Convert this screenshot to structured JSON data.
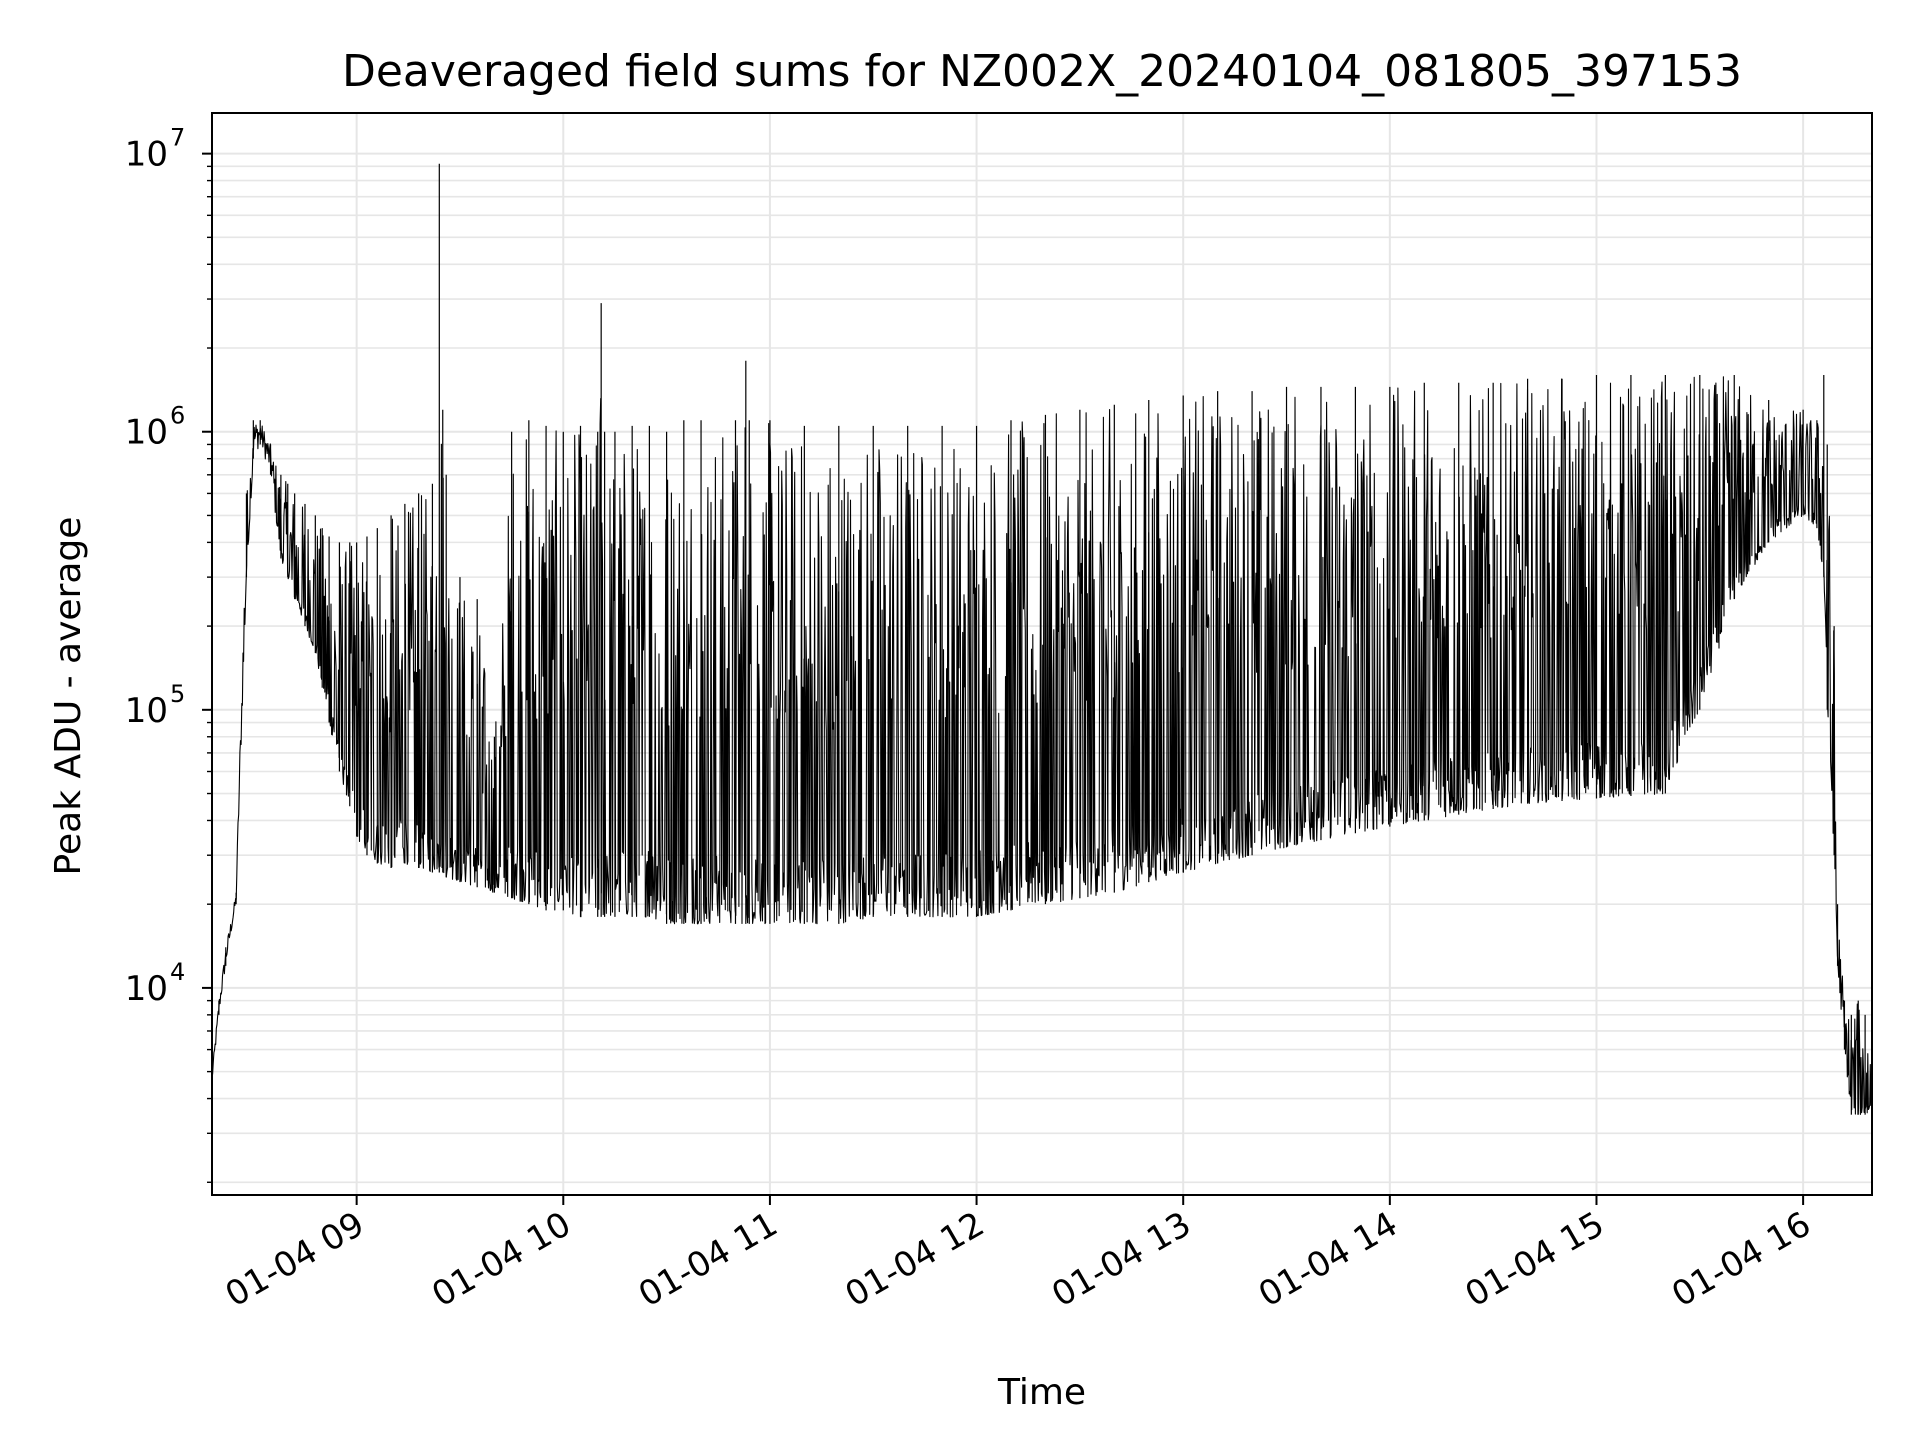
{
  "chart_data": {
    "type": "line",
    "title": "Deaveraged field sums for NZ002X_20240104_081805_397153",
    "xlabel": "Time",
    "ylabel": "Peak ADU - average",
    "yscale": "log",
    "grid": true,
    "line_color": "#000000",
    "grid_color": "#e6e6e6",
    "xlim": [
      "01-04 08:18",
      "01-04 16:20"
    ],
    "ylim": [
      1800,
      14000000
    ],
    "x_ticks": [
      {
        "value": "01-04 09:00",
        "label": "01-04 09"
      },
      {
        "value": "01-04 10:00",
        "label": "01-04 10"
      },
      {
        "value": "01-04 11:00",
        "label": "01-04 11"
      },
      {
        "value": "01-04 12:00",
        "label": "01-04 12"
      },
      {
        "value": "01-04 13:00",
        "label": "01-04 13"
      },
      {
        "value": "01-04 14:00",
        "label": "01-04 14"
      },
      {
        "value": "01-04 15:00",
        "label": "01-04 15"
      },
      {
        "value": "01-04 16:00",
        "label": "01-04 16"
      }
    ],
    "y_ticks": [
      {
        "value": 10000,
        "base": "10",
        "exponent": "4"
      },
      {
        "value": 100000,
        "base": "10",
        "exponent": "5"
      },
      {
        "value": 1000000,
        "base": "10",
        "exponent": "6"
      },
      {
        "value": 10000000,
        "base": "10",
        "exponent": "7"
      }
    ],
    "series": [
      {
        "x": [
          "01-04 08:18",
          "01-04 08:20",
          "01-04 08:22",
          "01-04 08:25",
          "01-04 08:28",
          "01-04 08:30",
          "01-04 08:32",
          "01-04 08:35",
          "01-04 08:38",
          "01-04 08:40",
          "01-04 08:42",
          "01-04 08:45",
          "01-04 08:48",
          "01-04 08:50",
          "01-04 08:52",
          "01-04 08:55",
          "01-04 08:58",
          "01-04 09:00",
          "01-04 09:03",
          "01-04 09:06",
          "01-04 09:10",
          "01-04 09:14",
          "01-04 09:18",
          "01-04 09:22",
          "01-04 09:24",
          "01-04 09:25",
          "01-04 09:26",
          "01-04 09:30",
          "01-04 09:35",
          "01-04 09:40",
          "01-04 09:45",
          "01-04 09:50",
          "01-04 09:55",
          "01-04 10:00",
          "01-04 10:05",
          "01-04 10:10",
          "01-04 10:11",
          "01-04 10:12",
          "01-04 10:15",
          "01-04 10:20",
          "01-04 10:25",
          "01-04 10:30",
          "01-04 10:35",
          "01-04 10:40",
          "01-04 10:50",
          "01-04 10:53",
          "01-04 10:54",
          "01-04 11:00",
          "01-04 11:10",
          "01-04 11:20",
          "01-04 11:30",
          "01-04 11:40",
          "01-04 11:50",
          "01-04 12:00",
          "01-04 12:10",
          "01-04 12:20",
          "01-04 12:30",
          "01-04 12:40",
          "01-04 12:50",
          "01-04 13:00",
          "01-04 13:10",
          "01-04 13:20",
          "01-04 13:30",
          "01-04 13:40",
          "01-04 13:50",
          "01-04 14:00",
          "01-04 14:10",
          "01-04 14:20",
          "01-04 14:30",
          "01-04 14:40",
          "01-04 14:50",
          "01-04 15:00",
          "01-04 15:10",
          "01-04 15:20",
          "01-04 15:30",
          "01-04 15:40",
          "01-04 15:50",
          "01-04 16:00",
          "01-04 16:04",
          "01-04 16:06",
          "01-04 16:07",
          "01-04 16:09",
          "01-04 16:10",
          "01-04 16:12",
          "01-04 16:14",
          "01-04 16:16",
          "01-04 16:18",
          "01-04 16:20"
        ],
        "low": [
          4500,
          8000,
          12000,
          20000,
          300000,
          800000,
          900000,
          700000,
          350000,
          300000,
          250000,
          200000,
          160000,
          120000,
          90000,
          60000,
          45000,
          35000,
          30000,
          28000,
          27000,
          28000,
          27000,
          26000,
          26000,
          26000,
          25000,
          24000,
          23000,
          22000,
          21000,
          20000,
          19000,
          19000,
          18000,
          18000,
          18000,
          18000,
          18000,
          18000,
          18000,
          17000,
          17000,
          17000,
          17000,
          17000,
          17000,
          17000,
          17000,
          17000,
          18000,
          18000,
          18000,
          18000,
          19000,
          20000,
          21000,
          22000,
          24000,
          26000,
          28000,
          30000,
          32000,
          34000,
          36000,
          38000,
          40000,
          42000,
          44000,
          46000,
          47000,
          48000,
          49000,
          50000,
          100000,
          250000,
          400000,
          500000,
          450000,
          300000,
          100000,
          30000,
          12000,
          6000,
          3500,
          3500,
          3500,
          3500
        ],
        "high": [
          5000,
          9000,
          14000,
          22000,
          600000,
          1100000,
          1100000,
          900000,
          700000,
          650000,
          600000,
          550000,
          500000,
          450000,
          420000,
          400000,
          400000,
          400000,
          420000,
          450000,
          500000,
          550000,
          600000,
          650000,
          9200000,
          1200000,
          700000,
          300000,
          250000,
          80000,
          1000000,
          1100000,
          1050000,
          1000000,
          1050000,
          1000000,
          2900000,
          1000000,
          1000000,
          1050000,
          1050000,
          1000000,
          1100000,
          1100000,
          1100000,
          1800000,
          1100000,
          1100000,
          1050000,
          1050000,
          1050000,
          1050000,
          1050000,
          1050000,
          1100000,
          1150000,
          1200000,
          1250000,
          1300000,
          1350000,
          1400000,
          1400000,
          1450000,
          1450000,
          1450000,
          1450000,
          1500000,
          1500000,
          1500000,
          1550000,
          1550000,
          1600000,
          1600000,
          1600000,
          1600000,
          1600000,
          1300000,
          1200000,
          1100000,
          1600000,
          900000,
          200000,
          20000,
          9000,
          8000,
          9000,
          8000,
          7000
        ]
      }
    ]
  }
}
